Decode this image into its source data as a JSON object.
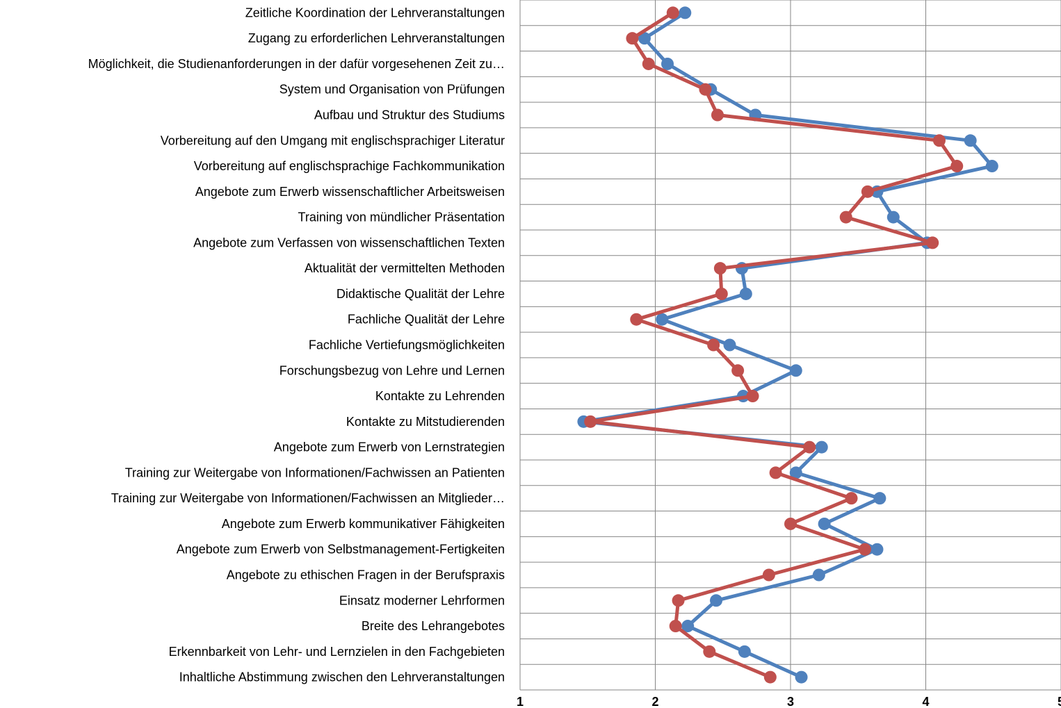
{
  "chart_data": {
    "type": "line",
    "orientation": "horizontal",
    "xlim": [
      1,
      5
    ],
    "x_ticks": [
      "1",
      "2",
      "3",
      "4",
      "5"
    ],
    "grid": true,
    "legend": "none",
    "categories": [
      "Zeitliche Koordination der Lehrveranstaltungen",
      "Zugang zu erforderlichen Lehrveranstaltungen",
      "Möglichkeit, die Studienanforderungen in der dafür vorgesehenen Zeit zu…",
      "System und Organisation von Prüfungen",
      "Aufbau und Struktur des Studiums",
      "Vorbereitung auf den Umgang mit englischsprachiger Literatur",
      "Vorbereitung auf englischsprachige Fachkommunikation",
      "Angebote zum Erwerb wissenschaftlicher Arbeitsweisen",
      "Training von mündlicher Präsentation",
      "Angebote zum Verfassen von wissenschaftlichen Texten",
      "Aktualität der vermittelten Methoden",
      "Didaktische Qualität der Lehre",
      "Fachliche Qualität der Lehre",
      "Fachliche Vertiefungsmöglichkeiten",
      "Forschungsbezug von Lehre und Lernen",
      "Kontakte zu Lehrenden",
      "Kontakte zu Mitstudierenden",
      "Angebote zum Erwerb von Lernstrategien",
      "Training zur Weitergabe von Informationen/Fachwissen an Patienten",
      "Training zur Weitergabe von Informationen/Fachwissen an Mitglieder…",
      "Angebote zum Erwerb kommunikativer Fähigkeiten",
      "Angebote zum Erwerb von Selbstmanagement-Fertigkeiten",
      "Angebote zu ethischen Fragen in der Berufspraxis",
      "Einsatz moderner Lehrformen",
      "Breite des Lehrangebotes",
      "Erkennbarkeit von Lehr- und Lernzielen in den Fachgebieten",
      "Inhaltliche Abstimmung zwischen den Lehrveranstaltungen"
    ],
    "series": [
      {
        "color": "#4F81BD",
        "values": [
          2.22,
          1.92,
          2.09,
          2.41,
          2.74,
          4.33,
          4.49,
          3.64,
          3.76,
          4.01,
          2.64,
          2.67,
          2.05,
          2.55,
          3.04,
          2.65,
          1.47,
          3.23,
          3.04,
          3.66,
          3.25,
          3.64,
          3.21,
          2.45,
          2.24,
          2.66,
          3.08
        ]
      },
      {
        "color": "#C0504D",
        "values": [
          2.13,
          1.83,
          1.95,
          2.37,
          2.46,
          4.1,
          4.23,
          3.57,
          3.41,
          4.05,
          2.48,
          2.49,
          1.86,
          2.43,
          2.61,
          2.72,
          1.52,
          3.14,
          2.89,
          3.45,
          3.0,
          3.55,
          2.84,
          2.17,
          2.15,
          2.4,
          2.85
        ]
      }
    ]
  }
}
